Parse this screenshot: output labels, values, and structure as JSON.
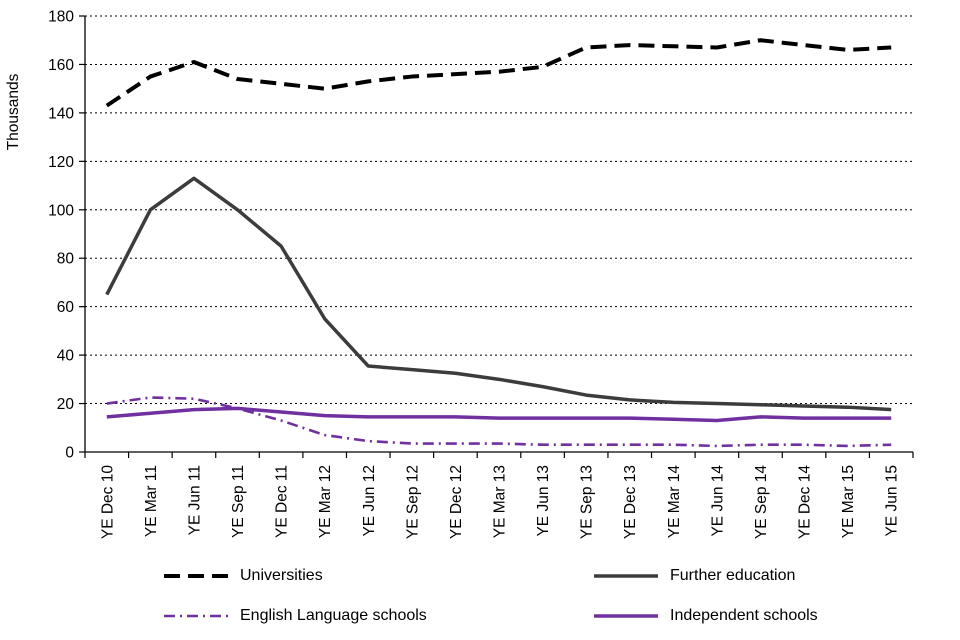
{
  "chart_data": {
    "type": "line",
    "title": "",
    "xlabel": "",
    "ylabel": "Thousands",
    "ylim": [
      0,
      180
    ],
    "ytick_step": 20,
    "grid": "horizontal-dashed",
    "legend_position": "bottom",
    "background": "#ffffff",
    "categories": [
      "YE Dec 10",
      "YE Mar 11",
      "YE Jun 11",
      "YE Sep 11",
      "YE Dec 11",
      "YE Mar 12",
      "YE Jun 12",
      "YE Sep 12",
      "YE Dec 12",
      "YE Mar 13",
      "YE Jun 13",
      "YE Sep 13",
      "YE Dec 13",
      "YE Mar 14",
      "YE Jun 14",
      "YE Sep 14",
      "YE Dec 14",
      "YE Mar 15",
      "YE Jun 15"
    ],
    "series": [
      {
        "name": "Universities",
        "color": "#000000",
        "dash": "dashed",
        "width": 4,
        "values": [
          143,
          155,
          161,
          154,
          152,
          150,
          153,
          155,
          156,
          157,
          159,
          167,
          168,
          167.5,
          167,
          170,
          168,
          166,
          167
        ]
      },
      {
        "name": "Further education",
        "color": "#3c3c3c",
        "dash": "solid",
        "width": 3.5,
        "values": [
          65,
          100,
          113,
          100,
          85,
          55,
          35.5,
          34,
          32.5,
          30,
          27,
          23.5,
          21.5,
          20.5,
          20,
          19.5,
          19,
          18.5,
          17.5
        ]
      },
      {
        "name": "English Language schools",
        "color": "#7030a0",
        "dash": "dashdot",
        "width": 2.6,
        "values": [
          20,
          22.5,
          22,
          18,
          13,
          7,
          4.5,
          3.5,
          3.5,
          3.5,
          3,
          3,
          3,
          3,
          2.5,
          3,
          3,
          2.5,
          3
        ]
      },
      {
        "name": "Independent schools",
        "color": "#7030a0",
        "dash": "solid",
        "width": 3.5,
        "values": [
          14.5,
          16,
          17.5,
          18,
          16.5,
          15,
          14.5,
          14.5,
          14.5,
          14,
          14,
          14,
          14,
          13.5,
          13,
          14.5,
          14,
          14,
          14
        ]
      }
    ]
  }
}
